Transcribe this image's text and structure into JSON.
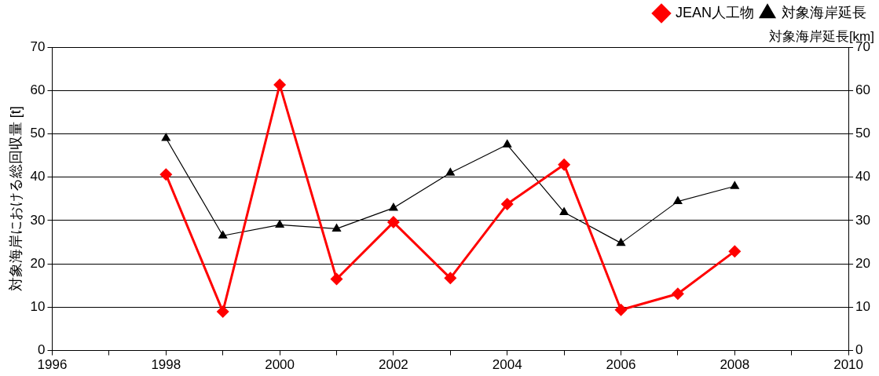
{
  "chart_data": {
    "type": "line",
    "x": [
      1998,
      1999,
      2000,
      2001,
      2002,
      2003,
      2004,
      2005,
      2006,
      2007,
      2008
    ],
    "series": [
      {
        "name": "JEAN人工物",
        "color": "#ff0000",
        "marker": "diamond",
        "values": [
          40.6,
          9.0,
          61.3,
          16.5,
          29.6,
          16.7,
          33.8,
          42.9,
          9.4,
          13.1,
          22.9
        ]
      },
      {
        "name": "対象海岸延長",
        "color": "#000000",
        "marker": "triangle",
        "axis": "y2",
        "values": [
          49.0,
          26.5,
          29.0,
          28.1,
          32.9,
          41.0,
          47.5,
          31.9,
          24.8,
          34.4,
          37.9
        ]
      }
    ],
    "ylabel": "対象海岸における総回収量 [t]",
    "y2label": "対象海岸延長[km]",
    "xlim": [
      1996,
      2010
    ],
    "xticks": [
      1996,
      {
        "value": 1997,
        "label": null
      },
      1998,
      {
        "value": 1999,
        "label": null
      },
      2000,
      {
        "value": 2001,
        "label": null
      },
      2002,
      {
        "value": 2003,
        "label": null
      },
      2004,
      {
        "value": 2005,
        "label": null
      },
      2006,
      {
        "value": 2007,
        "label": null
      },
      2008,
      {
        "value": 2009,
        "label": null
      },
      2010
    ],
    "ylim": [
      0,
      70
    ],
    "yticks": [
      0,
      10,
      20,
      30,
      40,
      50,
      60,
      70
    ],
    "y2lim": [
      0,
      70
    ],
    "y2ticks": [
      0,
      10,
      20,
      30,
      40,
      50,
      60,
      70
    ],
    "grid": "y",
    "legend": "top right",
    "line_style": "solid"
  }
}
